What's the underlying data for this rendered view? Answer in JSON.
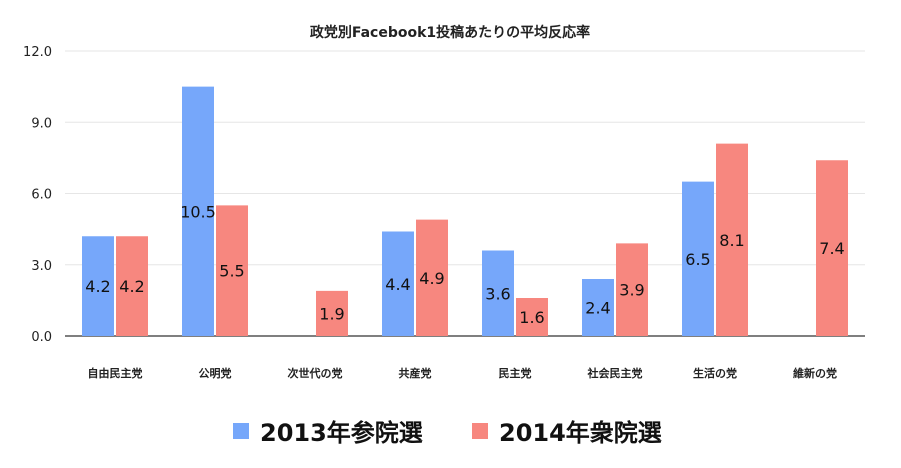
{
  "chart_data": {
    "type": "bar",
    "title": "政党別Facebook1投稿あたりの平均反応率",
    "xlabel": "",
    "ylabel": "",
    "ylim": [
      0,
      12
    ],
    "yticks": [
      "0.0",
      "3.0",
      "6.0",
      "9.0",
      "12.0"
    ],
    "grid": true,
    "legend_position": "bottom",
    "categories": [
      "自由民主党",
      "公明党",
      "次世代の党",
      "共産党",
      "民主党",
      "社会民主党",
      "生活の党",
      "維新の党"
    ],
    "series": [
      {
        "name": "2013年参院選",
        "color": "#76a7fa",
        "values": [
          4.2,
          10.5,
          null,
          4.4,
          3.6,
          2.4,
          6.5,
          null
        ],
        "labels": [
          "4.2",
          "10.5",
          "",
          "4.4",
          "3.6",
          "2.4",
          "6.5",
          ""
        ]
      },
      {
        "name": "2014年衆院選",
        "color": "#f7877f",
        "values": [
          4.2,
          5.5,
          1.9,
          4.9,
          1.6,
          3.9,
          8.1,
          7.4
        ],
        "labels": [
          "4.2",
          "5.5",
          "1.9",
          "4.9",
          "1.6",
          "3.9",
          "8.1",
          "7.4"
        ]
      }
    ]
  }
}
